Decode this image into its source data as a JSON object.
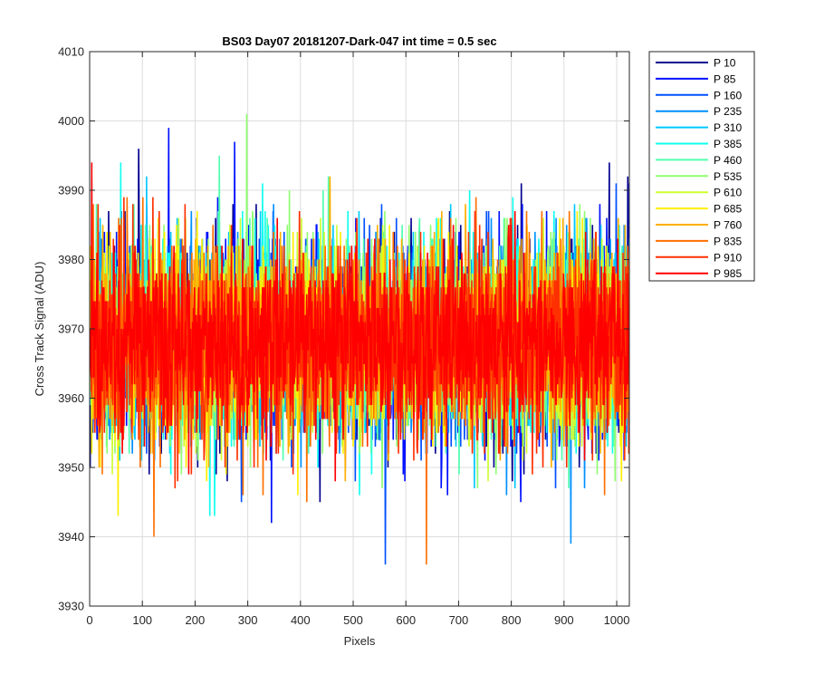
{
  "chart_data": {
    "type": "line",
    "title": "BS03 Day07 20181207-Dark-047 int time = 0.5 sec",
    "xlabel": "Pixels",
    "ylabel": "Cross Track Signal (ADU)",
    "xlim": [
      0,
      1024
    ],
    "ylim": [
      3930,
      4010
    ],
    "xticks": [
      0,
      100,
      200,
      300,
      400,
      500,
      600,
      700,
      800,
      900,
      1000
    ],
    "yticks": [
      3930,
      3940,
      3950,
      3960,
      3970,
      3980,
      3990,
      4000,
      4010
    ],
    "grid": true,
    "legend_position": "outside-top-right",
    "n_points": 1024,
    "center_value": 3968,
    "series": [
      {
        "name": "P 10",
        "color": "#00008f",
        "mean": 3968,
        "sd": 7.2,
        "peak": {
          "x": 1020,
          "y": 3992
        }
      },
      {
        "name": "P 85",
        "color": "#0010ff",
        "mean": 3968,
        "sd": 7.5,
        "peak": {
          "x": 149,
          "y": 3999
        }
      },
      {
        "name": "P 160",
        "color": "#0050ff",
        "mean": 3968,
        "sd": 7.0,
        "low": {
          "x": 560,
          "y": 3936
        }
      },
      {
        "name": "P 235",
        "color": "#0090ff",
        "mean": 3968,
        "sd": 7.0,
        "low": {
          "x": 912,
          "y": 3939
        }
      },
      {
        "name": "P 310",
        "color": "#00c8ff",
        "mean": 3968,
        "sd": 6.8
      },
      {
        "name": "P 385",
        "color": "#10ffef",
        "mean": 3968,
        "sd": 6.8,
        "peak": {
          "x": 58,
          "y": 3994
        }
      },
      {
        "name": "P 460",
        "color": "#50ffaf",
        "mean": 3968,
        "sd": 6.8
      },
      {
        "name": "P 535",
        "color": "#8fff70",
        "mean": 3968,
        "sd": 6.9,
        "peak": {
          "x": 297,
          "y": 4001
        }
      },
      {
        "name": "P 610",
        "color": "#cfff30",
        "mean": 3968,
        "sd": 6.8
      },
      {
        "name": "P 685",
        "color": "#ffef00",
        "mean": 3968,
        "sd": 6.8
      },
      {
        "name": "P 760",
        "color": "#ffaf00",
        "mean": 3968,
        "sd": 6.9
      },
      {
        "name": "P 835",
        "color": "#ff7000",
        "mean": 3968,
        "sd": 6.9,
        "low": {
          "x": 638,
          "y": 3936
        }
      },
      {
        "name": "P 910",
        "color": "#ff3000",
        "mean": 3968,
        "sd": 6.8
      },
      {
        "name": "P 985",
        "color": "#ff0000",
        "mean": 3968,
        "sd": 6.6,
        "peak": {
          "x": 3,
          "y": 3994
        }
      }
    ]
  }
}
